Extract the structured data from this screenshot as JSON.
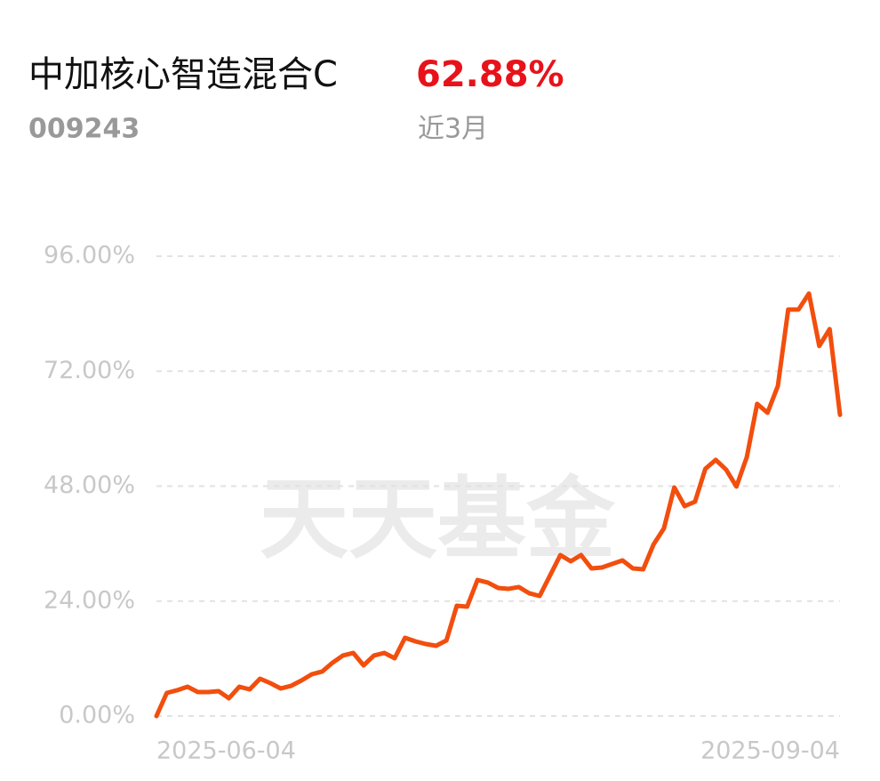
{
  "header": {
    "fund_name": "中加核心智造混合C",
    "fund_code": "009243",
    "return": "62.88%",
    "period": "近3月"
  },
  "watermark": "天天基金",
  "chart_data": {
    "type": "line",
    "categories": [
      "2025-06-04",
      null,
      null,
      null,
      null,
      null,
      null,
      null,
      null,
      null,
      null,
      null,
      null,
      null,
      null,
      null,
      null,
      null,
      null,
      null,
      null,
      null,
      null,
      null,
      null,
      null,
      null,
      null,
      null,
      null,
      null,
      null,
      null,
      null,
      null,
      null,
      null,
      null,
      null,
      null,
      null,
      null,
      null,
      null,
      null,
      null,
      null,
      null,
      null,
      null,
      null,
      null,
      null,
      null,
      null,
      null,
      null,
      null,
      null,
      null,
      null,
      null,
      null,
      null,
      null,
      null,
      "2025-09-04"
    ],
    "series": [
      {
        "name": "中加核心智造混合C",
        "color": "#f24e0e",
        "values": [
          0,
          4.83,
          5.39,
          6.13,
          5.01,
          5.01,
          5.2,
          3.71,
          6.13,
          5.57,
          7.8,
          6.87,
          5.76,
          6.31,
          7.43,
          8.73,
          9.29,
          11.14,
          12.63,
          13.18,
          10.58,
          12.63,
          13.18,
          12.07,
          16.34,
          15.6,
          15.04,
          14.67,
          15.78,
          23.03,
          22.84,
          28.41,
          27.86,
          26.74,
          26.56,
          26.93,
          25.63,
          25.07,
          29.34,
          33.61,
          32.31,
          33.61,
          30.83,
          31.01,
          31.75,
          32.5,
          30.83,
          30.64,
          35.84,
          39.18,
          47.72,
          43.82,
          44.75,
          51.62,
          53.48,
          51.44,
          47.91,
          54.04,
          65.18,
          63.32,
          68.9,
          84.87,
          84.87,
          88.21,
          77.25,
          80.78,
          62.88
        ]
      }
    ],
    "ylim": [
      0,
      96
    ],
    "yticks": [
      {
        "value": 0,
        "label": "0.00%"
      },
      {
        "value": 24,
        "label": "24.00%"
      },
      {
        "value": 48,
        "label": "48.00%"
      },
      {
        "value": 72,
        "label": "72.00%"
      },
      {
        "value": 96,
        "label": "96.00%"
      }
    ],
    "grid": true
  }
}
